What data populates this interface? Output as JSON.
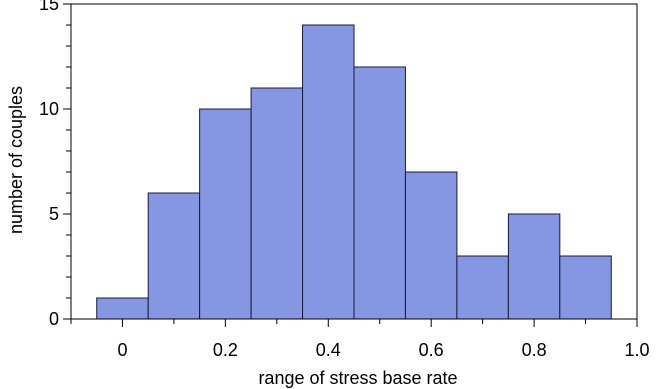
{
  "chart_data": {
    "type": "bar",
    "subtype": "histogram",
    "title": "",
    "xlabel": "range of stress base rate",
    "ylabel": "number of couples",
    "bins": [
      {
        "start": -0.05,
        "end": 0.05,
        "value": 1
      },
      {
        "start": 0.05,
        "end": 0.15,
        "value": 6
      },
      {
        "start": 0.15,
        "end": 0.25,
        "value": 10
      },
      {
        "start": 0.25,
        "end": 0.35,
        "value": 11
      },
      {
        "start": 0.35,
        "end": 0.45,
        "value": 14
      },
      {
        "start": 0.45,
        "end": 0.55,
        "value": 12
      },
      {
        "start": 0.55,
        "end": 0.65,
        "value": 7
      },
      {
        "start": 0.65,
        "end": 0.75,
        "value": 3
      },
      {
        "start": 0.75,
        "end": 0.85,
        "value": 5
      },
      {
        "start": 0.85,
        "end": 0.95,
        "value": 3
      }
    ],
    "xlim": [
      -0.1,
      1.0
    ],
    "ylim": [
      0,
      15
    ],
    "x_ticks": [
      {
        "value": 0,
        "label": "0"
      },
      {
        "value": 0.2,
        "label": "0.2"
      },
      {
        "value": 0.4,
        "label": "0.4"
      },
      {
        "value": 0.6,
        "label": "0.6"
      },
      {
        "value": 0.8,
        "label": "0.8"
      },
      {
        "value": 1.0,
        "label": "1.0"
      }
    ],
    "x_minor_step": 0.1,
    "y_ticks": [
      {
        "value": 0,
        "label": "0"
      },
      {
        "value": 5,
        "label": "5"
      },
      {
        "value": 10,
        "label": "10"
      },
      {
        "value": 15,
        "label": "15"
      }
    ],
    "y_minor_step": 1,
    "grid": false,
    "legend": "none",
    "colors": {
      "bar_fill": "#8596e2",
      "bar_stroke": "#1a1a3a",
      "axis": "#000000"
    }
  }
}
